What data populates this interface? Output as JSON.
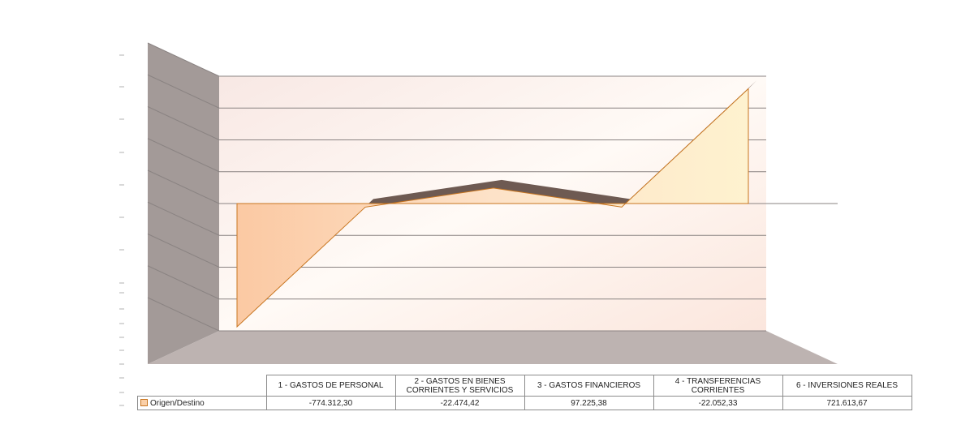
{
  "chart_data": {
    "type": "area",
    "three_d": true,
    "categories": [
      "1 - GASTOS DE PERSONAL",
      "2 - GASTOS EN BIENES CORRIENTES Y SERVICIOS",
      "3 - GASTOS FINANCIEROS",
      "4 - TRANSFERENCIAS CORRIENTES",
      "6 - INVERSIONES REALES"
    ],
    "series": [
      {
        "name": "Origen/Destino",
        "values": [
          -774312.3,
          -22474.42,
          97225.38,
          -22052.33,
          721613.67
        ],
        "labels": [
          "-774.312,30",
          "-22.474,42",
          "97.225,38",
          "-22.052,33",
          "721.613,67"
        ],
        "color": "#fbd0a8"
      }
    ],
    "ylim": [
      -800000,
      800000
    ],
    "grid": true,
    "data_table": true,
    "legend": "data-table"
  },
  "colors": {
    "wall": "#a39a98",
    "floor": "#bdb3b1",
    "area_edge": "#c8751f",
    "shadow": "#6e5a52"
  }
}
